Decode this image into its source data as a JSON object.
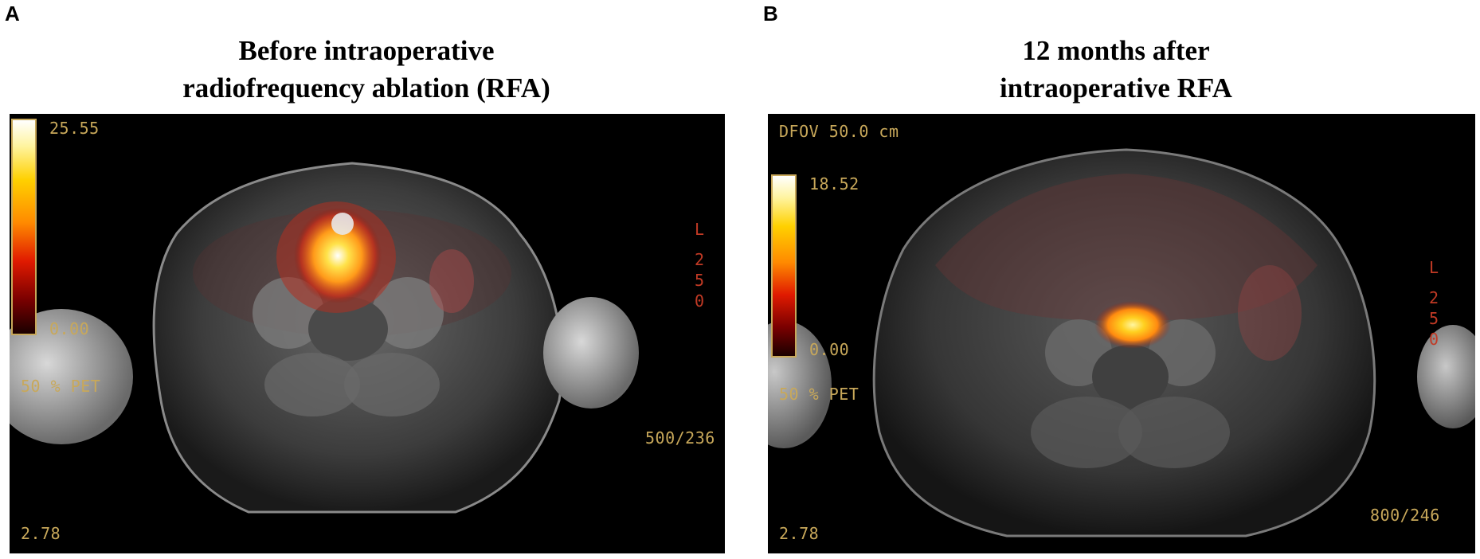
{
  "panels": [
    {
      "letter": "A",
      "title_lines": [
        "Before intraoperative",
        "radiofrequency ablation (RFA)"
      ],
      "overlay": {
        "colorbar_max": "25.55",
        "colorbar_min": "0.00",
        "fusion": "50 % PET",
        "corner_bottom_left": "2.78",
        "window_level": "500/236",
        "orientation": "L",
        "orientation_value": [
          "2",
          "5",
          "0"
        ]
      }
    },
    {
      "letter": "B",
      "title_lines": [
        "12 months after",
        "intraoperative RFA"
      ],
      "overlay": {
        "dfov": "DFOV 50.0 cm",
        "colorbar_max": "18.52",
        "colorbar_min": "0.00",
        "fusion": "50 % PET",
        "corner_bottom_left": "2.78",
        "window_level": "800/246",
        "orientation": "L",
        "orientation_value": [
          "2",
          "5",
          "0"
        ]
      }
    }
  ],
  "colors": {
    "overlay_text": "#c8a85a",
    "orientation_text": "#c23a25",
    "image_background": "#000000"
  }
}
